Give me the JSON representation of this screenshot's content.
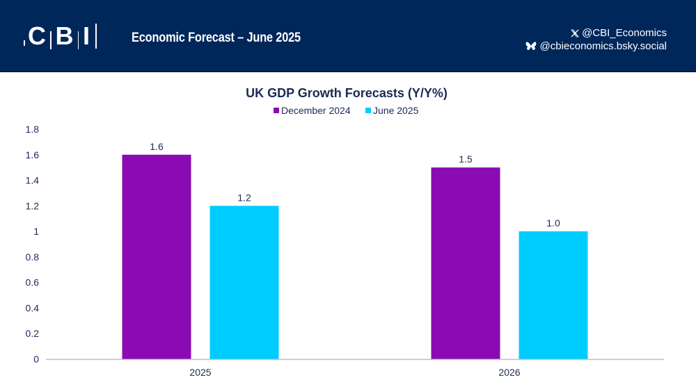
{
  "header": {
    "logo_text": [
      "C",
      "B",
      "I"
    ],
    "subtitle": "Economic Forecast – June 2025",
    "social": [
      {
        "icon": "x-logo-icon",
        "handle": "@CBI_Economics"
      },
      {
        "icon": "bluesky-butterfly-icon",
        "handle": "@cbieconomics.bsky.social"
      }
    ],
    "background_color": "#00275a"
  },
  "chart_data": {
    "type": "bar",
    "title": "UK GDP Growth Forecasts (Y/Y%)",
    "categories": [
      "2025",
      "2026"
    ],
    "series": [
      {
        "name": "December 2024",
        "values": [
          1.6,
          1.5
        ],
        "labels": [
          "1.6",
          "1.5"
        ],
        "color": "#8a0bb3"
      },
      {
        "name": "June 2025",
        "values": [
          1.2,
          1.0
        ],
        "labels": [
          "1.2",
          "1.0"
        ],
        "color": "#00cdff"
      }
    ],
    "xlabel": "",
    "ylabel": "",
    "ylim": [
      0,
      1.8
    ],
    "yticks": [
      0,
      0.2,
      0.4,
      0.6,
      0.8,
      1,
      1.2,
      1.4,
      1.6,
      1.8
    ],
    "ytick_labels": [
      "0",
      "0.2",
      "0.4",
      "0.6",
      "0.8",
      "1",
      "1.2",
      "1.4",
      "1.6",
      "1.8"
    ],
    "grid": false,
    "legend_position": "top-center"
  }
}
